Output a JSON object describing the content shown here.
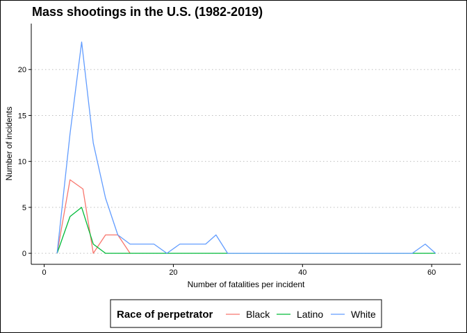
{
  "chart_data": {
    "type": "line",
    "title": "Mass shootings in the U.S. (1982-2019)",
    "xlabel": "Number of fatalities per incident",
    "ylabel": "Number of incidents",
    "xlim": [
      -2,
      64.5
    ],
    "ylim": [
      -1.2,
      25
    ],
    "xticks": [
      0,
      20,
      40,
      60
    ],
    "yticks": [
      0,
      5,
      10,
      15,
      20
    ],
    "grid": "horizontal-dotted",
    "legend": {
      "title": "Race of perpetrator",
      "position": "bottom"
    },
    "series": [
      {
        "name": "Black",
        "color": "#F8766D",
        "x": [
          2,
          4,
          6,
          7.6,
          9.5,
          11.4,
          13.3
        ],
        "y": [
          0,
          8,
          7,
          0,
          2,
          2,
          0
        ]
      },
      {
        "name": "Latino",
        "color": "#00BA38",
        "x": [
          2,
          4,
          5.8,
          7.6,
          9.5,
          11.4,
          13.3,
          15,
          17,
          19,
          21,
          23,
          25,
          26.6,
          28.4,
          40,
          57,
          59,
          60.6
        ],
        "y": [
          0,
          4,
          5,
          1,
          0,
          0,
          0,
          0,
          0,
          0,
          0,
          0,
          0,
          0,
          0,
          0,
          0,
          0,
          0
        ]
      },
      {
        "name": "White",
        "color": "#619CFF",
        "x": [
          2,
          4,
          5.8,
          7.6,
          9.5,
          11.4,
          13.3,
          15,
          17,
          19,
          21,
          23,
          25,
          26.6,
          28.4,
          40,
          57,
          59,
          60.6
        ],
        "y": [
          0,
          13,
          23,
          12,
          6,
          2,
          1,
          1,
          1,
          0,
          1,
          1,
          1,
          2,
          0,
          0,
          0,
          1,
          0
        ]
      }
    ]
  }
}
